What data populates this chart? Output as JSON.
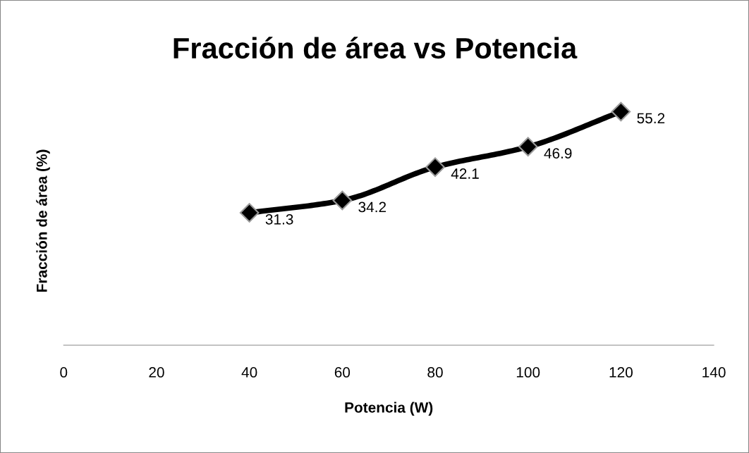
{
  "chart_data": {
    "type": "line",
    "title": "Fracción de área vs Potencia",
    "xlabel": "Potencia (W)",
    "ylabel": "Fracción de área (%)",
    "x": [
      40,
      60,
      80,
      100,
      120
    ],
    "series": [
      {
        "color": "#000000",
        "values": [
          31.3,
          34.2,
          42.1,
          46.9,
          55.2
        ]
      }
    ],
    "xlim": [
      0,
      140
    ],
    "xticks": [
      0,
      20,
      40,
      60,
      80,
      100,
      120,
      140
    ],
    "tick_labels": "x",
    "data_labels": true,
    "marker": "diamond",
    "line_style": "solid",
    "grid": false,
    "legend": false
  }
}
